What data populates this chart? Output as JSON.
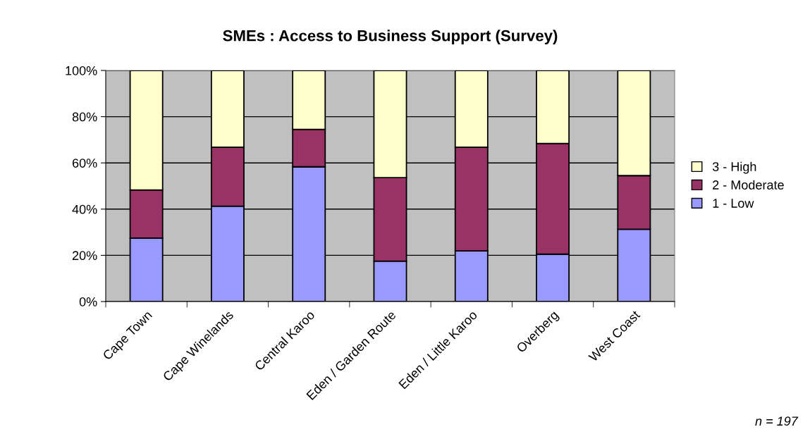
{
  "chart_data": {
    "type": "bar",
    "title": "SMEs : Access to Business Support (Survey)",
    "categories": [
      "Cape Town",
      "Cape Winelands",
      "Central Karoo",
      "Eden / Garden Route",
      "Eden / Little Karoo",
      "Overberg",
      "West Coast"
    ],
    "stacked": true,
    "series": [
      {
        "name": "1 - Low",
        "color": "#9999ff",
        "values": [
          27.5,
          41.3,
          58.3,
          17.5,
          21.9,
          20.5,
          31.3
        ]
      },
      {
        "name": "2 - Moderate",
        "color": "#993366",
        "values": [
          20.8,
          25.5,
          16.2,
          36.1,
          44.9,
          47.9,
          23.2
        ]
      },
      {
        "name": "3 - High",
        "color": "#ffffcc",
        "values": [
          51.7,
          33.2,
          25.5,
          46.4,
          33.2,
          31.6,
          45.5
        ]
      }
    ],
    "ylim": [
      0,
      100
    ],
    "yticks": [
      {
        "value": 0,
        "label": "0%"
      },
      {
        "value": 20,
        "label": "20%"
      },
      {
        "value": 40,
        "label": "40%"
      },
      {
        "value": 60,
        "label": "60%"
      },
      {
        "value": 80,
        "label": "80%"
      },
      {
        "value": 100,
        "label": "100%"
      }
    ],
    "grid": "y",
    "legend": "right",
    "annotations": [
      "n = 197"
    ]
  }
}
